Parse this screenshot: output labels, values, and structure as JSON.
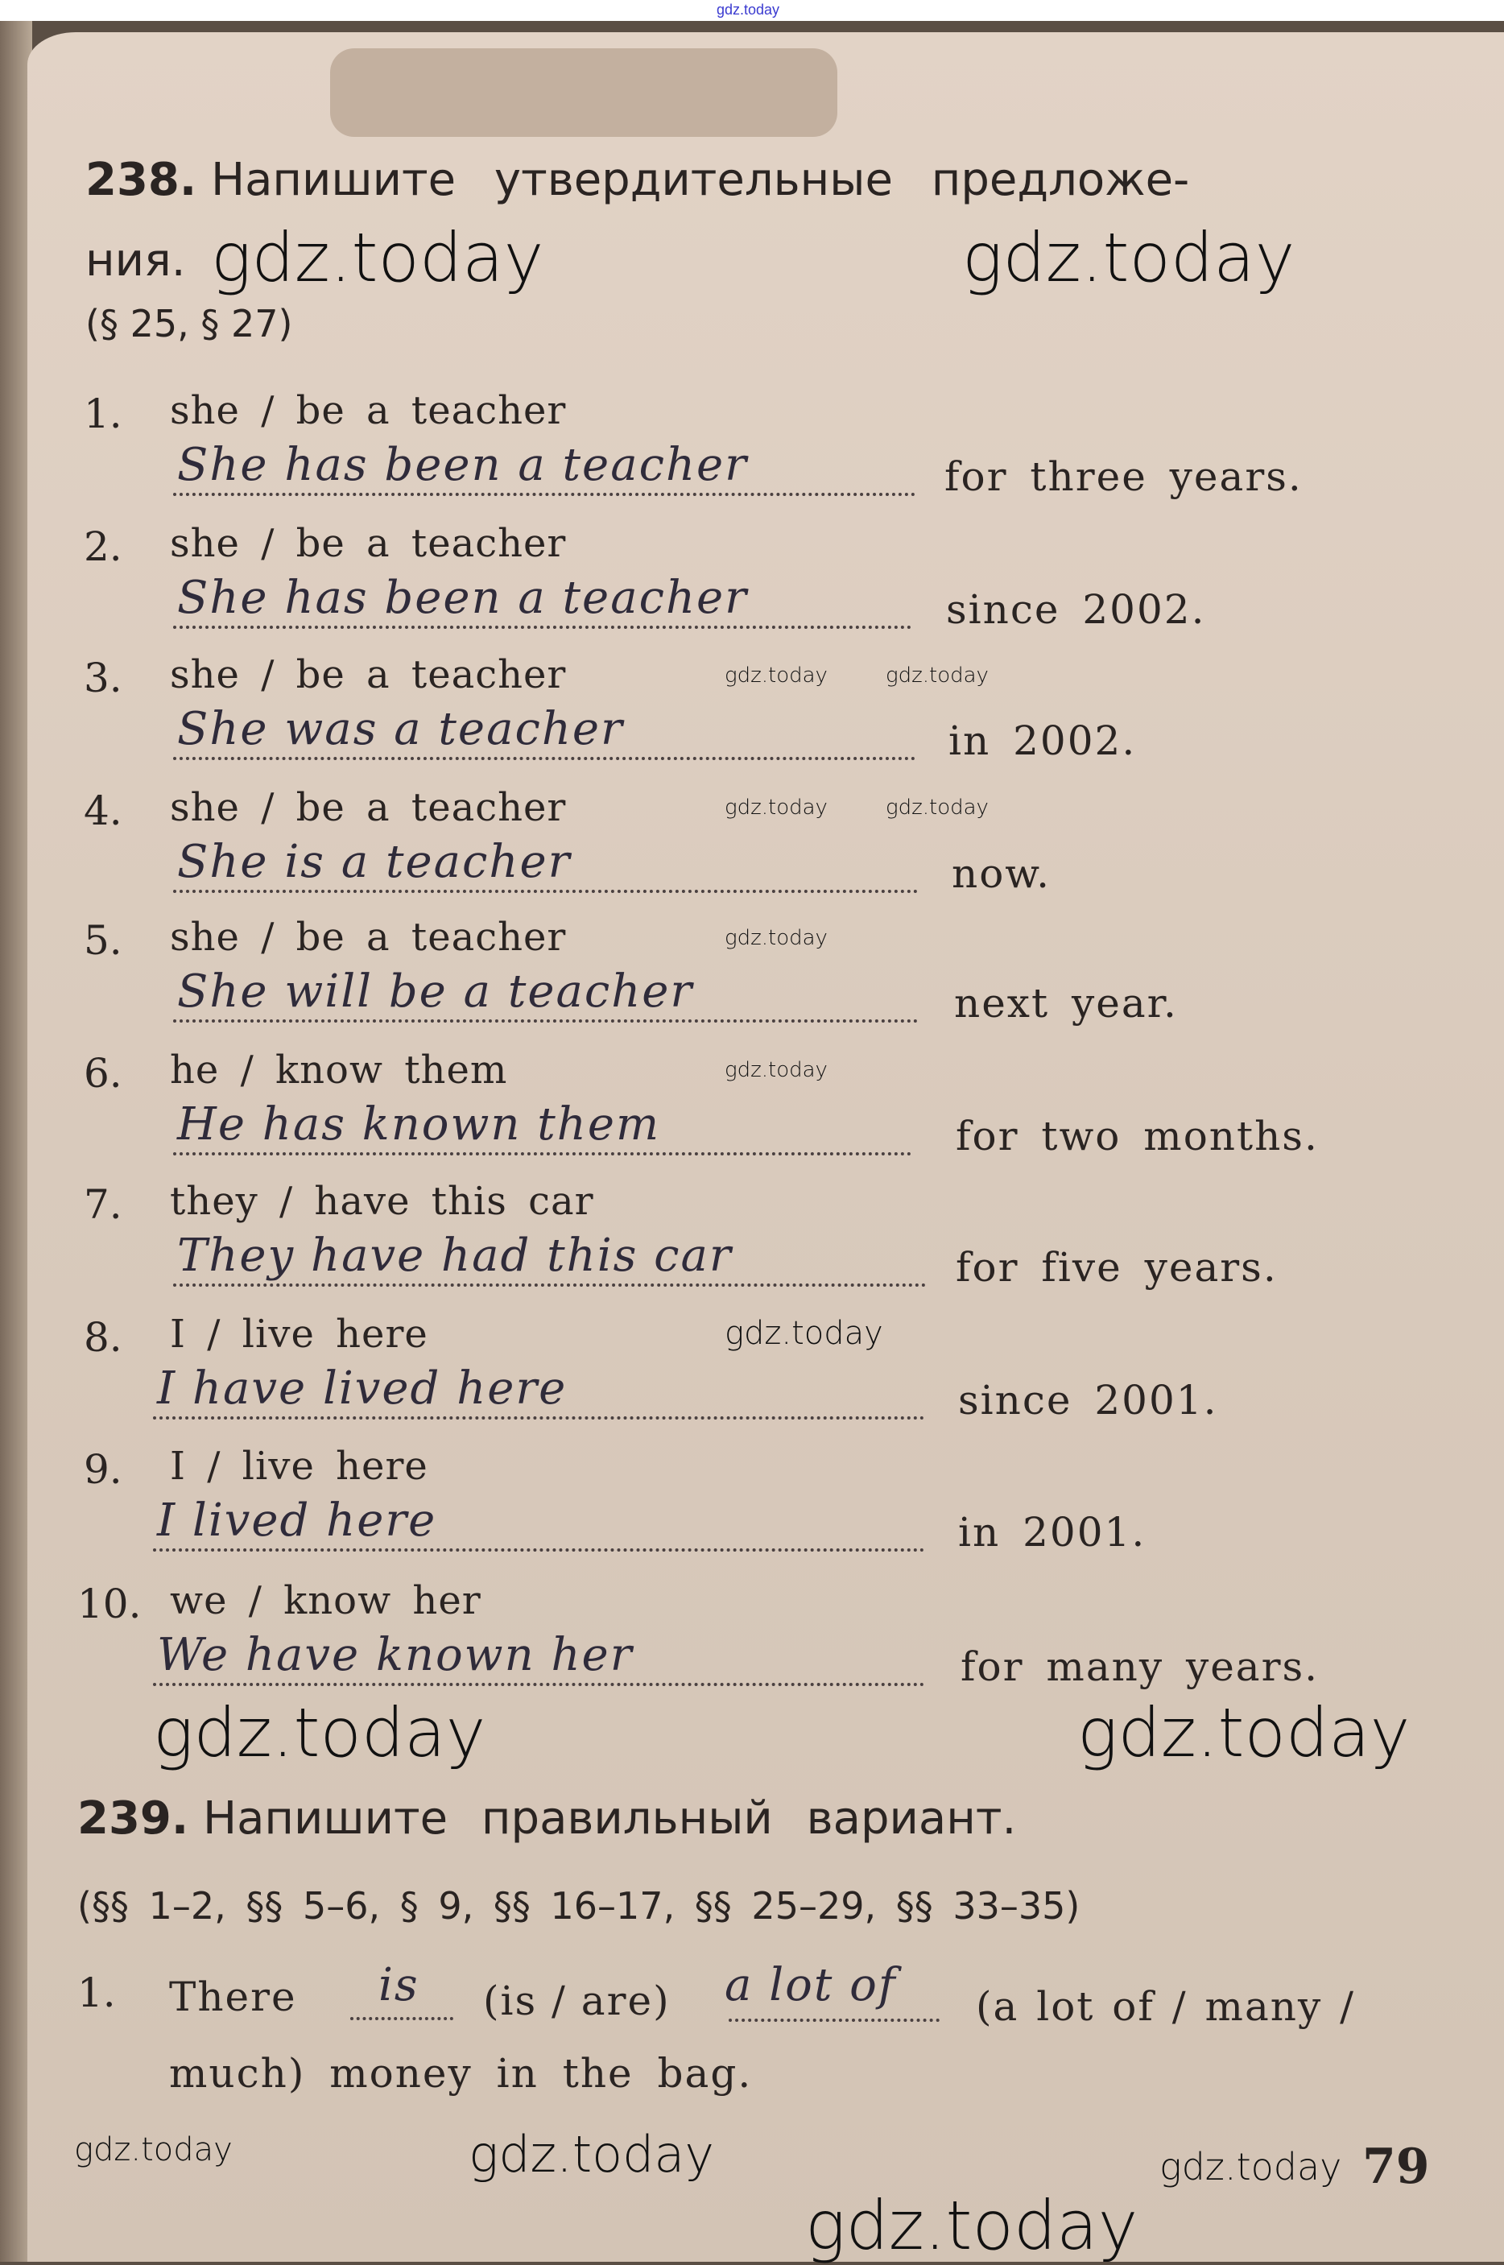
{
  "watermark": "gdz.today",
  "ex238": {
    "number": "238.",
    "title_line1": "Напишите утвердительные предложе-",
    "title_line2": "ния.",
    "refs": "(§ 25, § 27)",
    "items": [
      {
        "n": "1.",
        "prompt": "she / be a teacher",
        "answer": "She has been a teacher",
        "suffix": "for three years."
      },
      {
        "n": "2.",
        "prompt": "she / be a teacher",
        "answer": "She has been a teacher",
        "suffix": "since 2002."
      },
      {
        "n": "3.",
        "prompt": "she / be a teacher",
        "answer": "She was a teacher",
        "suffix": "in 2002."
      },
      {
        "n": "4.",
        "prompt": "she / be a teacher",
        "answer": "She is a teacher",
        "suffix": "now."
      },
      {
        "n": "5.",
        "prompt": "she / be a teacher",
        "answer": "She will be a teacher",
        "suffix": "next year."
      },
      {
        "n": "6.",
        "prompt": "he / know them",
        "answer": "He has known them",
        "suffix": "for two months."
      },
      {
        "n": "7.",
        "prompt": "they / have this car",
        "answer": "They have had this car",
        "suffix": "for five years."
      },
      {
        "n": "8.",
        "prompt": "I / live here",
        "answer": "I have lived here",
        "suffix": "since 2001."
      },
      {
        "n": "9.",
        "prompt": "I / live here",
        "answer": "I lived here",
        "suffix": "in 2001."
      },
      {
        "n": "10.",
        "prompt": "we / know her",
        "answer": "We have known her",
        "suffix": "for many years."
      }
    ]
  },
  "ex239": {
    "number": "239.",
    "title": "Напишите правильный вариант.",
    "refs": "(§§ 1–2, §§ 5–6, § 9, §§ 16–17, §§ 25–29, §§ 33–35)",
    "item1": {
      "n": "1.",
      "part1": "There",
      "answer1": "is",
      "part2": "(is / are)",
      "answer2": "a lot of",
      "part3": "(a lot of / many /",
      "line2": "much) money in the bag."
    }
  },
  "page_number": "79"
}
